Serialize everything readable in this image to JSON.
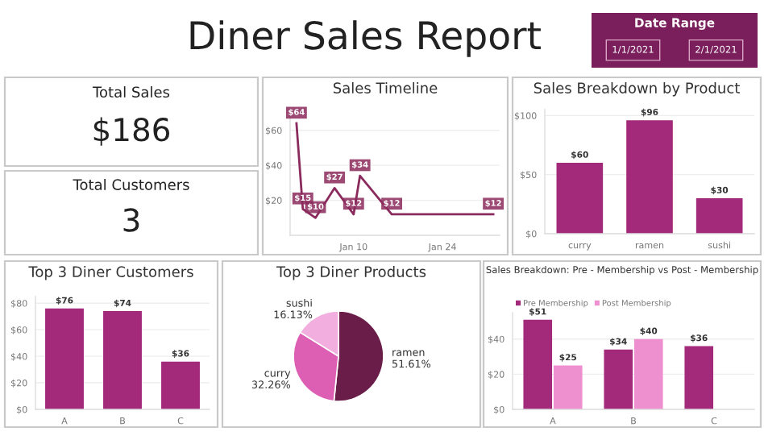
{
  "chart_data": [
    {
      "type": "other",
      "title": "Diner Sales Report"
    },
    {
      "type": "other",
      "title": "Date Range",
      "annotations": [
        "1/1/2021",
        "2/1/2021"
      ],
      "color": "#7a1f5c"
    },
    {
      "type": "other",
      "title": "Total Sales",
      "annotations": [
        "$186"
      ]
    },
    {
      "type": "other",
      "title": "Total Customers",
      "annotations": [
        "3"
      ]
    },
    {
      "type": "line",
      "title": "Sales Timeline",
      "x": [
        "2021-01-01",
        "2021-01-02",
        "2021-01-04",
        "2021-01-07",
        "2021-01-10",
        "2021-01-11",
        "2021-01-16",
        "2021-02-01"
      ],
      "series": [
        {
          "color": "#8b2a5c",
          "values": [
            64,
            15,
            10,
            27,
            12,
            34,
            12,
            12
          ],
          "value_labels": [
            "$64",
            "$15",
            "$10",
            "$27",
            "$12",
            "$34",
            "$12",
            "$12"
          ]
        }
      ],
      "xlim": [
        "2020-12-31",
        "2021-02-02"
      ],
      "xticks": [
        {
          "value": "2021-01-10",
          "label": "Jan 10"
        },
        {
          "value": "2021-01-24",
          "label": "Jan 24"
        }
      ],
      "ylim": [
        0,
        70
      ],
      "yticks": [
        {
          "value": 20,
          "label": "$20"
        },
        {
          "value": 40,
          "label": "$40"
        },
        {
          "value": 60,
          "label": "$60"
        }
      ],
      "grid": "y",
      "marker": "none",
      "line_style": "solid"
    },
    {
      "type": "bar",
      "title": "Sales Breakdown by Product",
      "categories": [
        "curry",
        "ramen",
        "sushi"
      ],
      "series": [
        {
          "color": "#a3297a",
          "values": [
            60,
            96,
            30
          ],
          "value_labels": [
            "$60",
            "$96",
            "$30"
          ]
        }
      ],
      "ylim": [
        0,
        105
      ],
      "yticks": [
        {
          "value": 0,
          "label": "$0"
        },
        {
          "value": 50,
          "label": "$50"
        },
        {
          "value": 100,
          "label": "$100"
        }
      ],
      "grid": "y"
    },
    {
      "type": "bar",
      "title": "Top 3 Diner Customers",
      "categories": [
        "A",
        "B",
        "C"
      ],
      "series": [
        {
          "color": "#a3297a",
          "values": [
            76,
            74,
            36
          ],
          "value_labels": [
            "$76",
            "$74",
            "$36"
          ]
        }
      ],
      "ylim": [
        0,
        85
      ],
      "yticks": [
        {
          "value": 0,
          "label": "$0"
        },
        {
          "value": 20,
          "label": "$20"
        },
        {
          "value": 40,
          "label": "$40"
        },
        {
          "value": 60,
          "label": "$60"
        },
        {
          "value": 80,
          "label": "$80"
        }
      ],
      "grid": "y"
    },
    {
      "type": "pie",
      "title": "Top 3 Diner Products",
      "categories": [
        "ramen",
        "curry",
        "sushi"
      ],
      "values": [
        51.61,
        32.26,
        16.13
      ],
      "colors": [
        "#6b1d4a",
        "#dc5fb4",
        "#f2aede"
      ],
      "value_labels": [
        "51.61%",
        "32.26%",
        "16.13%"
      ]
    },
    {
      "type": "bar",
      "title": "Sales Breakdown: Pre - Membership vs Post - Membership",
      "categories": [
        "A",
        "B",
        "C"
      ],
      "series": [
        {
          "name": "Pre Membership",
          "color": "#a3297a",
          "values": [
            51,
            34,
            36
          ],
          "value_labels": [
            "$51",
            "$34",
            "$36"
          ]
        },
        {
          "name": "Post Membership",
          "color": "#ee8fcf",
          "values": [
            25,
            40,
            null
          ],
          "value_labels": [
            "$25",
            "$40",
            null
          ]
        }
      ],
      "ylim": [
        0,
        55
      ],
      "yticks": [
        {
          "value": 0,
          "label": "$0"
        },
        {
          "value": 20,
          "label": "$20"
        },
        {
          "value": 40,
          "label": "$40"
        }
      ],
      "grid": "y",
      "legend": "top left"
    }
  ]
}
